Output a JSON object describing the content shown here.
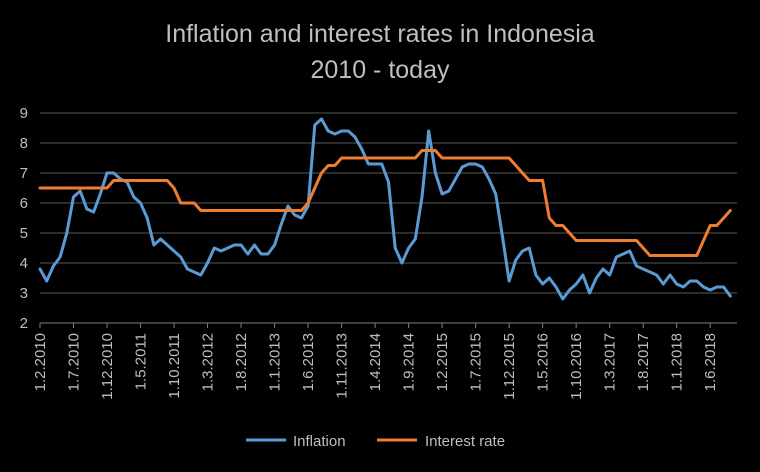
{
  "chart_data": {
    "type": "line",
    "title": "Inflation and interest rates in Indonesia",
    "subtitle": "2010 - today",
    "xlabel": "",
    "ylabel": "",
    "ylim": [
      2,
      9
    ],
    "yticks": [
      2,
      3,
      4,
      5,
      6,
      7,
      8,
      9
    ],
    "xlim": [
      "2010-02",
      "2018-10"
    ],
    "xticks": [
      "1.2.2010",
      "1.7.2010",
      "1.12.2010",
      "1.5.2011",
      "1.10.2011",
      "1.3.2012",
      "1.8.2012",
      "1.1.2013",
      "1.6.2013",
      "1.11.2013",
      "1.4.2014",
      "1.9.2014",
      "1.2.2015",
      "1.7.2015",
      "1.12.2015",
      "1.5.2016",
      "1.10.2016",
      "1.3.2017",
      "1.8.2017",
      "1.1.2018",
      "1.6.2018"
    ],
    "grid": true,
    "legend": "bottom",
    "series": [
      {
        "name": "Inflation",
        "color": "#5b9bd5",
        "points": [
          [
            "2010-02",
            3.8
          ],
          [
            "2010-03",
            3.4
          ],
          [
            "2010-04",
            3.9
          ],
          [
            "2010-05",
            4.2
          ],
          [
            "2010-06",
            5.0
          ],
          [
            "2010-07",
            6.2
          ],
          [
            "2010-08",
            6.4
          ],
          [
            "2010-09",
            5.8
          ],
          [
            "2010-10",
            5.7
          ],
          [
            "2010-11",
            6.3
          ],
          [
            "2010-12",
            7.0
          ],
          [
            "2011-01",
            7.0
          ],
          [
            "2011-02",
            6.8
          ],
          [
            "2011-03",
            6.7
          ],
          [
            "2011-04",
            6.2
          ],
          [
            "2011-05",
            6.0
          ],
          [
            "2011-06",
            5.5
          ],
          [
            "2011-07",
            4.6
          ],
          [
            "2011-08",
            4.8
          ],
          [
            "2011-09",
            4.6
          ],
          [
            "2011-10",
            4.4
          ],
          [
            "2011-11",
            4.2
          ],
          [
            "2011-12",
            3.8
          ],
          [
            "2012-01",
            3.7
          ],
          [
            "2012-02",
            3.6
          ],
          [
            "2012-03",
            4.0
          ],
          [
            "2012-04",
            4.5
          ],
          [
            "2012-05",
            4.4
          ],
          [
            "2012-06",
            4.5
          ],
          [
            "2012-07",
            4.6
          ],
          [
            "2012-08",
            4.6
          ],
          [
            "2012-09",
            4.3
          ],
          [
            "2012-10",
            4.6
          ],
          [
            "2012-11",
            4.3
          ],
          [
            "2012-12",
            4.3
          ],
          [
            "2013-01",
            4.6
          ],
          [
            "2013-02",
            5.3
          ],
          [
            "2013-03",
            5.9
          ],
          [
            "2013-04",
            5.6
          ],
          [
            "2013-05",
            5.5
          ],
          [
            "2013-06",
            5.9
          ],
          [
            "2013-07",
            8.6
          ],
          [
            "2013-08",
            8.8
          ],
          [
            "2013-09",
            8.4
          ],
          [
            "2013-10",
            8.3
          ],
          [
            "2013-11",
            8.4
          ],
          [
            "2013-12",
            8.4
          ],
          [
            "2014-01",
            8.2
          ],
          [
            "2014-02",
            7.8
          ],
          [
            "2014-03",
            7.3
          ],
          [
            "2014-04",
            7.3
          ],
          [
            "2014-05",
            7.3
          ],
          [
            "2014-06",
            6.7
          ],
          [
            "2014-07",
            4.5
          ],
          [
            "2014-08",
            4.0
          ],
          [
            "2014-09",
            4.5
          ],
          [
            "2014-10",
            4.8
          ],
          [
            "2014-11",
            6.2
          ],
          [
            "2014-12",
            8.4
          ],
          [
            "2015-01",
            7.0
          ],
          [
            "2015-02",
            6.3
          ],
          [
            "2015-03",
            6.4
          ],
          [
            "2015-04",
            6.8
          ],
          [
            "2015-05",
            7.2
          ],
          [
            "2015-06",
            7.3
          ],
          [
            "2015-07",
            7.3
          ],
          [
            "2015-08",
            7.2
          ],
          [
            "2015-09",
            6.8
          ],
          [
            "2015-10",
            6.3
          ],
          [
            "2015-11",
            4.9
          ],
          [
            "2015-12",
            3.4
          ],
          [
            "2016-01",
            4.1
          ],
          [
            "2016-02",
            4.4
          ],
          [
            "2016-03",
            4.5
          ],
          [
            "2016-04",
            3.6
          ],
          [
            "2016-05",
            3.3
          ],
          [
            "2016-06",
            3.5
          ],
          [
            "2016-07",
            3.2
          ],
          [
            "2016-08",
            2.8
          ],
          [
            "2016-09",
            3.1
          ],
          [
            "2016-10",
            3.3
          ],
          [
            "2016-11",
            3.6
          ],
          [
            "2016-12",
            3.0
          ],
          [
            "2017-01",
            3.5
          ],
          [
            "2017-02",
            3.8
          ],
          [
            "2017-03",
            3.6
          ],
          [
            "2017-04",
            4.2
          ],
          [
            "2017-05",
            4.3
          ],
          [
            "2017-06",
            4.4
          ],
          [
            "2017-07",
            3.9
          ],
          [
            "2017-08",
            3.8
          ],
          [
            "2017-09",
            3.7
          ],
          [
            "2017-10",
            3.6
          ],
          [
            "2017-11",
            3.3
          ],
          [
            "2017-12",
            3.6
          ],
          [
            "2018-01",
            3.3
          ],
          [
            "2018-02",
            3.2
          ],
          [
            "2018-03",
            3.4
          ],
          [
            "2018-04",
            3.4
          ],
          [
            "2018-05",
            3.2
          ],
          [
            "2018-06",
            3.1
          ],
          [
            "2018-07",
            3.2
          ],
          [
            "2018-08",
            3.2
          ],
          [
            "2018-09",
            2.9
          ]
        ]
      },
      {
        "name": "Interest rate",
        "color": "#ed7d31",
        "points": [
          [
            "2010-02",
            6.5
          ],
          [
            "2010-12",
            6.5
          ],
          [
            "2011-01",
            6.75
          ],
          [
            "2011-09",
            6.75
          ],
          [
            "2011-10",
            6.5
          ],
          [
            "2011-11",
            6.0
          ],
          [
            "2011-12",
            6.0
          ],
          [
            "2012-01",
            6.0
          ],
          [
            "2012-02",
            5.75
          ],
          [
            "2013-05",
            5.75
          ],
          [
            "2013-06",
            6.0
          ],
          [
            "2013-07",
            6.5
          ],
          [
            "2013-08",
            7.0
          ],
          [
            "2013-09",
            7.25
          ],
          [
            "2013-10",
            7.25
          ],
          [
            "2013-11",
            7.5
          ],
          [
            "2014-10",
            7.5
          ],
          [
            "2014-11",
            7.75
          ],
          [
            "2015-01",
            7.75
          ],
          [
            "2015-02",
            7.5
          ],
          [
            "2015-12",
            7.5
          ],
          [
            "2016-01",
            7.25
          ],
          [
            "2016-02",
            7.0
          ],
          [
            "2016-03",
            6.75
          ],
          [
            "2016-05",
            6.75
          ],
          [
            "2016-06",
            5.5
          ],
          [
            "2016-07",
            5.25
          ],
          [
            "2016-08",
            5.25
          ],
          [
            "2016-09",
            5.0
          ],
          [
            "2016-10",
            4.75
          ],
          [
            "2017-07",
            4.75
          ],
          [
            "2017-08",
            4.5
          ],
          [
            "2017-09",
            4.25
          ],
          [
            "2018-04",
            4.25
          ],
          [
            "2018-05",
            4.75
          ],
          [
            "2018-06",
            5.25
          ],
          [
            "2018-07",
            5.25
          ],
          [
            "2018-08",
            5.5
          ],
          [
            "2018-09",
            5.75
          ]
        ]
      }
    ],
    "colors": {
      "background": "#000000",
      "grid": "#595959",
      "text": "#bfbfbf"
    }
  }
}
